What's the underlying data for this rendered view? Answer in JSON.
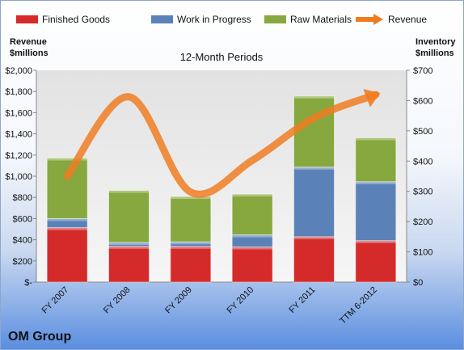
{
  "chart_data": {
    "type": "bar",
    "stacked": true,
    "title": "12-Month Periods",
    "company": "OM Group",
    "categories": [
      "FY 2007",
      "FY 2008",
      "FY 2009",
      "FY 2010",
      "FY 2011",
      "TTM 6-2012"
    ],
    "y_left": {
      "label_line1": "Revenue",
      "label_line2": "$millions",
      "range": [
        0,
        2000
      ],
      "ticks": [
        0,
        200,
        400,
        600,
        800,
        1000,
        1200,
        1400,
        1600,
        1800,
        2000
      ],
      "tick_labels": [
        "$-",
        "$200",
        "$400",
        "$600",
        "$800",
        "$1,000",
        "$1,200",
        "$1,400",
        "$1,600",
        "$1,800",
        "$2,000"
      ]
    },
    "y_right": {
      "label_line1": "Inventory",
      "label_line2": "$millions",
      "range": [
        0,
        700
      ],
      "ticks": [
        0,
        100,
        200,
        300,
        400,
        500,
        600,
        700
      ],
      "tick_labels": [
        "$0",
        "$100",
        "$200",
        "$300",
        "$400",
        "$500",
        "$600",
        "$700"
      ]
    },
    "series": [
      {
        "name": "Finished Goods",
        "axis": "right",
        "color": "#d52a2a",
        "values": [
          180,
          118,
          118,
          116,
          150,
          137
        ]
      },
      {
        "name": "Work in Progress",
        "axis": "right",
        "color": "#5b82b8",
        "values": [
          30,
          13,
          15,
          40,
          230,
          195
        ]
      },
      {
        "name": "Raw Materials",
        "axis": "right",
        "color": "#86a83e",
        "values": [
          200,
          172,
          150,
          135,
          235,
          145
        ]
      },
      {
        "name": "Revenue",
        "axis": "left",
        "type": "line",
        "color": "#f07c22",
        "values": [
          1000,
          1750,
          850,
          1150,
          1550,
          1770
        ]
      }
    ],
    "legend_position": "top",
    "grid": false
  }
}
